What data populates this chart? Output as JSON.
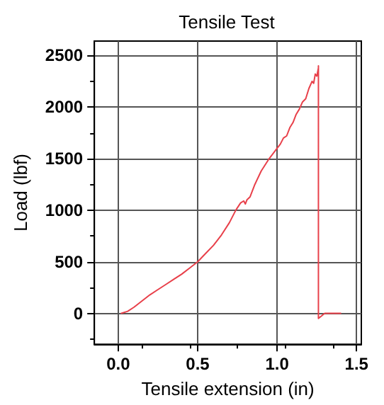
{
  "chart_data": {
    "type": "line",
    "title": "Tensile Test",
    "xlabel": "Tensile extension (in)",
    "ylabel": "Load (lbf)",
    "series": [
      {
        "color": "#e8404a",
        "x": [
          0.02,
          0.06,
          0.1,
          0.15,
          0.2,
          0.25,
          0.3,
          0.35,
          0.4,
          0.45,
          0.5,
          0.55,
          0.6,
          0.65,
          0.7,
          0.74,
          0.77,
          0.79,
          0.8,
          0.81,
          0.83,
          0.86,
          0.9,
          0.95,
          1.0,
          1.02,
          1.04,
          1.06,
          1.08,
          1.1,
          1.12,
          1.14,
          1.16,
          1.18,
          1.2,
          1.22,
          1.23,
          1.24,
          1.25,
          1.26,
          1.26,
          1.26,
          1.3,
          1.4
        ],
        "values": [
          0,
          20,
          60,
          120,
          180,
          230,
          280,
          330,
          380,
          440,
          500,
          580,
          660,
          760,
          880,
          1000,
          1070,
          1090,
          1060,
          1100,
          1130,
          1250,
          1380,
          1500,
          1600,
          1640,
          1700,
          1720,
          1800,
          1850,
          1930,
          1980,
          2050,
          2080,
          2180,
          2250,
          2230,
          2320,
          2300,
          2380,
          2400,
          -50,
          0,
          0
        ]
      }
    ],
    "xlim": [
      -0.15,
      1.53
    ],
    "ylim": [
      -300,
      2640
    ],
    "xticks": [
      {
        "value": 0,
        "label": "0.0"
      },
      {
        "value": 0.5,
        "label": "0.5"
      },
      {
        "value": 1,
        "label": "1.0"
      },
      {
        "value": 1.5,
        "label": "1.5"
      }
    ],
    "yticks": [
      0,
      500,
      1000,
      1500,
      2000,
      2500
    ],
    "grid": true,
    "marker": "none",
    "line_style": "solid"
  }
}
